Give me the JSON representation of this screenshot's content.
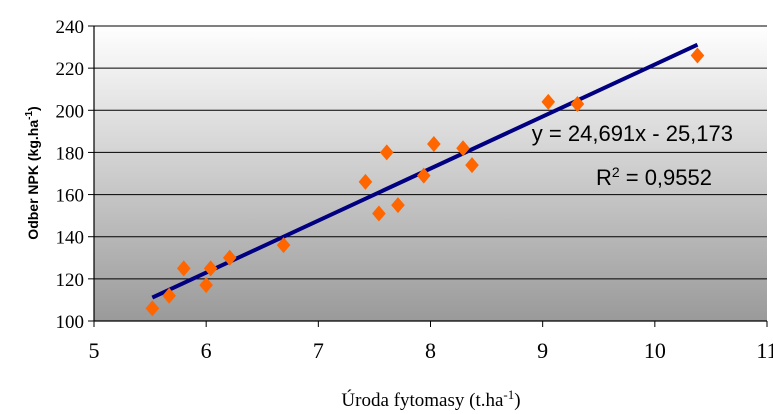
{
  "colors": {
    "point": "#FF6600",
    "trendline": "#000080",
    "plot_bg_top": "#ffffff",
    "plot_bg_bottom": "#9a9a9a"
  },
  "chart_data": {
    "type": "scatter",
    "title": "",
    "xlabel": "Úroda fytomasy (t.ha",
    "xlabel_sup": "-1",
    "xlabel_end": ")",
    "ylabel": "Odber NPK (kg.ha",
    "ylabel_sup": "-1",
    "ylabel_end": ")",
    "xlim": [
      5,
      11
    ],
    "ylim": [
      100,
      240
    ],
    "xticks": [
      5,
      6,
      7,
      8,
      9,
      10,
      11
    ],
    "yticks": [
      100,
      120,
      140,
      160,
      180,
      200,
      220,
      240
    ],
    "grid": "horizontal",
    "marker": "diamond",
    "series": [
      {
        "x": [
          5.52,
          5.67,
          5.8,
          6.0,
          6.04,
          6.21,
          6.69,
          7.42,
          7.54,
          7.61,
          7.71,
          7.94,
          8.03,
          8.29,
          8.37,
          9.05,
          9.31,
          10.38
        ],
        "y": [
          106,
          112,
          125,
          117,
          125,
          130,
          136,
          166,
          151,
          180,
          155,
          169,
          184,
          182,
          174,
          204,
          203,
          226
        ]
      }
    ],
    "trendline": {
      "type": "linear",
      "slope": 24.691,
      "intercept": -25.173,
      "x_range": [
        5.52,
        10.38
      ],
      "equation": "y = 24,691x - 25,173",
      "r2_prefix": "R",
      "r2_sup": "2",
      "r2_value": " = 0,9552"
    }
  }
}
